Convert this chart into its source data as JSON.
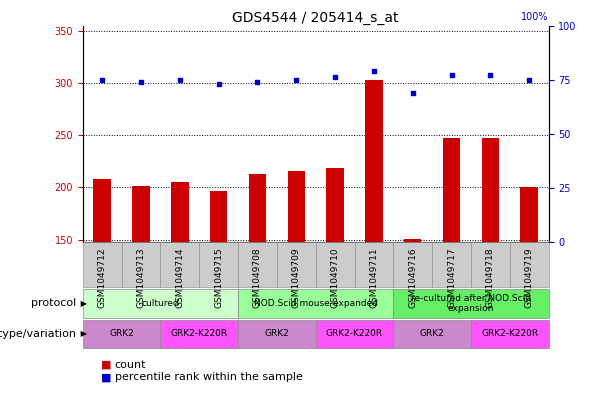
{
  "title": "GDS4544 / 205414_s_at",
  "samples": [
    "GSM1049712",
    "GSM1049713",
    "GSM1049714",
    "GSM1049715",
    "GSM1049708",
    "GSM1049709",
    "GSM1049710",
    "GSM1049711",
    "GSM1049716",
    "GSM1049717",
    "GSM1049718",
    "GSM1049719"
  ],
  "counts": [
    208,
    201,
    205,
    197,
    213,
    216,
    219,
    303,
    151,
    247,
    247,
    200
  ],
  "percentile_ranks": [
    75,
    74,
    75,
    73,
    74,
    75,
    76,
    79,
    69,
    77,
    77,
    75
  ],
  "ylim_left": [
    148,
    355
  ],
  "ylim_right": [
    0,
    100
  ],
  "yticks_left": [
    150,
    200,
    250,
    300,
    350
  ],
  "yticks_right": [
    0,
    25,
    50,
    75,
    100
  ],
  "bar_color": "#cc0000",
  "dot_color": "#0000cc",
  "bar_bottom": 148,
  "protocols": [
    {
      "label": "cultured",
      "start": 0,
      "end": 4,
      "color": "#ccffcc"
    },
    {
      "label": "NOD.Scid mouse-expanded",
      "start": 4,
      "end": 8,
      "color": "#99ff99"
    },
    {
      "label": "re-cultured after NOD.Scid\nexpansion",
      "start": 8,
      "end": 12,
      "color": "#66ee66"
    }
  ],
  "genotypes": [
    {
      "label": "GRK2",
      "start": 0,
      "end": 2,
      "color": "#cc88cc"
    },
    {
      "label": "GRK2-K220R",
      "start": 2,
      "end": 4,
      "color": "#ff55ff"
    },
    {
      "label": "GRK2",
      "start": 4,
      "end": 6,
      "color": "#cc88cc"
    },
    {
      "label": "GRK2-K220R",
      "start": 6,
      "end": 8,
      "color": "#ff55ff"
    },
    {
      "label": "GRK2",
      "start": 8,
      "end": 10,
      "color": "#cc88cc"
    },
    {
      "label": "GRK2-K220R",
      "start": 10,
      "end": 12,
      "color": "#ff55ff"
    }
  ],
  "sample_bg": "#cccccc",
  "protocol_row_label": "protocol",
  "genotype_row_label": "genotype/variation",
  "legend_count_label": "count",
  "legend_pct_label": "percentile rank within the sample",
  "bg_color": "#ffffff",
  "plot_bg": "#ffffff",
  "grid_color": "#000000",
  "right_axis_color": "#0000cc",
  "left_axis_color": "#cc0000",
  "title_fontsize": 10,
  "tick_fontsize": 7,
  "label_fontsize": 8,
  "sample_fontsize": 6.5
}
